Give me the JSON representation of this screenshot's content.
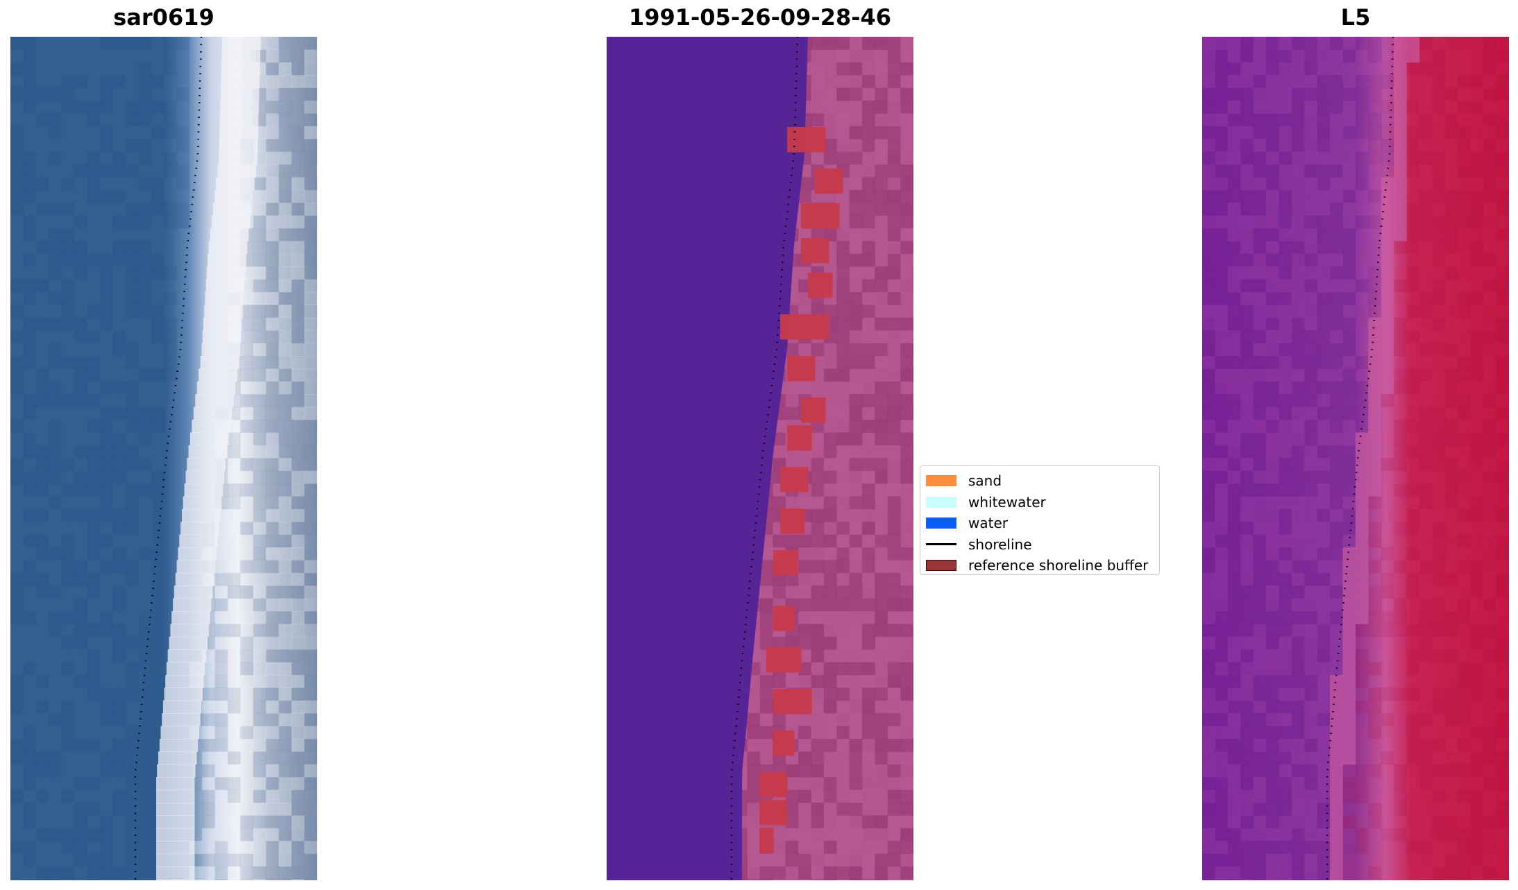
{
  "panels": [
    {
      "title": "sar0619",
      "image": "true-color-satellite-tile"
    },
    {
      "title": "1991-05-26-09-28-46",
      "image": "classified-image-with-buffer"
    },
    {
      "title": "L5",
      "image": "water-index-image"
    }
  ],
  "legend": [
    {
      "label": "sand",
      "color": "#ff8c3f"
    },
    {
      "label": "whitewater",
      "color": "#c8fdfc"
    },
    {
      "label": "water",
      "color": "#0a5ef7"
    },
    {
      "label": "shoreline",
      "color": "#000000",
      "kind": "line"
    },
    {
      "label": "reference shoreline buffer",
      "color": "#9b3434"
    }
  ]
}
